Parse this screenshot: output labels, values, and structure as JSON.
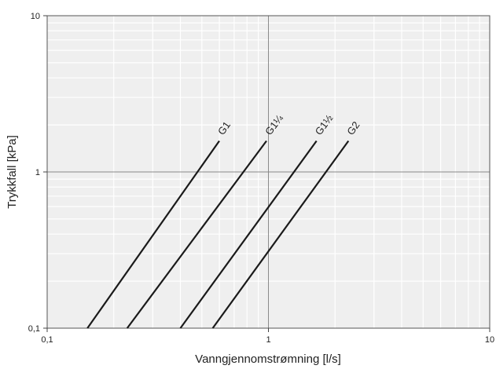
{
  "chart_data": {
    "type": "line",
    "title": "",
    "xlabel": "Vanngjennomstrømning [l/s]",
    "ylabel": "Trykkfall [kPa]",
    "x_scale": "log",
    "y_scale": "log",
    "xlim": [
      0.1,
      10
    ],
    "ylim": [
      0.1,
      10
    ],
    "x_ticks": [
      {
        "value": 0.1,
        "label": "0,1"
      },
      {
        "value": 1,
        "label": "1"
      },
      {
        "value": 10,
        "label": "10"
      }
    ],
    "y_ticks": [
      {
        "value": 0.1,
        "label": "0,1"
      },
      {
        "value": 1,
        "label": "1"
      },
      {
        "value": 10,
        "label": "10"
      }
    ],
    "grid": true,
    "background": "#efefef",
    "series": [
      {
        "name": "G1",
        "x": [
          0.152,
          0.6
        ],
        "y": [
          0.1,
          1.58
        ]
      },
      {
        "name": "G1¼",
        "x": [
          0.23,
          0.98
        ],
        "y": [
          0.1,
          1.58
        ]
      },
      {
        "name": "G1½",
        "x": [
          0.4,
          1.65
        ],
        "y": [
          0.1,
          1.58
        ]
      },
      {
        "name": "G2",
        "x": [
          0.56,
          2.3
        ],
        "y": [
          0.1,
          1.58
        ]
      }
    ]
  }
}
